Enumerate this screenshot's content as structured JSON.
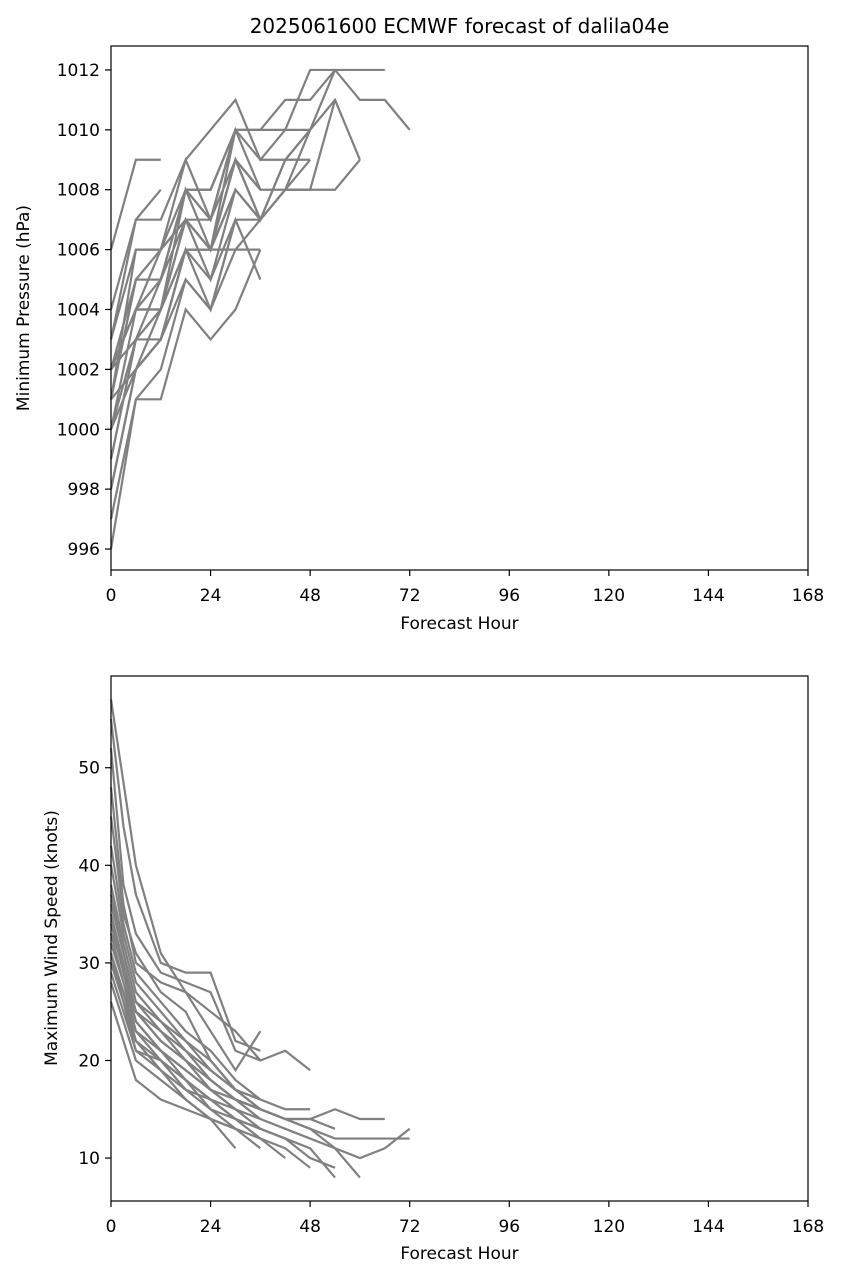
{
  "chart_data": [
    {
      "type": "line",
      "title": "2025061600 ECMWF forecast of dalila04e",
      "xlabel": "Forecast Hour",
      "ylabel": "Minimum Pressure (hPa)",
      "xlim": [
        0,
        168
      ],
      "ylim": [
        995.3,
        1012.8
      ],
      "xticks": [
        0,
        24,
        48,
        72,
        96,
        120,
        144,
        168
      ],
      "yticks": [
        996,
        998,
        1000,
        1002,
        1004,
        1006,
        1008,
        1010,
        1012
      ],
      "grid": false,
      "line_color": "#808080",
      "series": [
        {
          "x": [
            0,
            6,
            12
          ],
          "values": [
            1006,
            1009,
            1009
          ]
        },
        {
          "x": [
            0,
            6,
            12
          ],
          "values": [
            1003,
            1007,
            1008
          ]
        },
        {
          "x": [
            0,
            6,
            12,
            18,
            24,
            30,
            36,
            42,
            48,
            54,
            60,
            66,
            72
          ],
          "values": [
            1002,
            1005,
            1006,
            1009,
            1010,
            1011,
            1009,
            1010,
            1012,
            1012,
            1011,
            1011,
            1010
          ]
        },
        {
          "x": [
            0,
            6,
            12,
            18,
            24,
            30,
            36,
            42,
            48,
            54,
            60
          ],
          "values": [
            1004,
            1007,
            1007,
            1009,
            1007,
            1009,
            1007,
            1009,
            1010,
            1011,
            1009
          ]
        },
        {
          "x": [
            0,
            6,
            12,
            18,
            24,
            30,
            36,
            42,
            48,
            54,
            60,
            66
          ],
          "values": [
            1001,
            1006,
            1006,
            1008,
            1008,
            1010,
            1010,
            1011,
            1011,
            1012,
            1012,
            1012
          ]
        },
        {
          "x": [
            0,
            6,
            12,
            18,
            24,
            30,
            36,
            42,
            48
          ],
          "values": [
            1001,
            1005,
            1005,
            1008,
            1007,
            1010,
            1009,
            1009,
            1009
          ]
        },
        {
          "x": [
            0,
            6,
            12,
            18,
            24,
            30,
            36,
            42,
            48
          ],
          "values": [
            1002,
            1004,
            1006,
            1007,
            1006,
            1009,
            1008,
            1008,
            1009
          ]
        },
        {
          "x": [
            0,
            6,
            12,
            18,
            24,
            30,
            36,
            42,
            48
          ],
          "values": [
            1000,
            1004,
            1004,
            1007,
            1006,
            1008,
            1007,
            1008,
            1010
          ]
        },
        {
          "x": [
            0,
            6,
            12,
            18,
            24,
            30,
            36,
            42,
            48,
            54
          ],
          "values": [
            999,
            1003,
            1003,
            1006,
            1005,
            1008,
            1007,
            1009,
            1010,
            1012
          ]
        },
        {
          "x": [
            0,
            6,
            12,
            18,
            24,
            30,
            36,
            42,
            48,
            54
          ],
          "values": [
            998,
            1002,
            1003,
            1006,
            1004,
            1007,
            1007,
            1008,
            1008,
            1011
          ]
        },
        {
          "x": [
            0,
            6,
            12,
            18,
            24,
            30,
            36,
            42,
            48,
            54,
            60
          ],
          "values": [
            997,
            1001,
            1002,
            1005,
            1004,
            1006,
            1007,
            1008,
            1008,
            1008,
            1009
          ]
        },
        {
          "x": [
            0,
            6,
            12,
            18,
            24,
            30,
            36
          ],
          "values": [
            996,
            1001,
            1001,
            1004,
            1003,
            1004,
            1006
          ]
        },
        {
          "x": [
            0,
            6,
            12,
            18,
            24,
            30,
            36
          ],
          "values": [
            1002,
            1003,
            1004,
            1007,
            1006,
            1009,
            1008
          ]
        },
        {
          "x": [
            0,
            6,
            12,
            18,
            24,
            30,
            36
          ],
          "values": [
            1001,
            1002,
            1004,
            1008,
            1006,
            1009,
            1007
          ]
        },
        {
          "x": [
            0,
            6,
            12,
            18,
            24,
            30,
            36
          ],
          "values": [
            1000,
            1003,
            1005,
            1008,
            1007,
            1010,
            1008
          ]
        },
        {
          "x": [
            0,
            6,
            12,
            18,
            24,
            30,
            36
          ],
          "values": [
            1002,
            1004,
            1005,
            1007,
            1005,
            1007,
            1005
          ]
        },
        {
          "x": [
            0,
            6,
            12,
            18,
            24,
            30,
            36
          ],
          "values": [
            1000,
            1002,
            1003,
            1006,
            1006,
            1006,
            1006
          ]
        },
        {
          "x": [
            0,
            6,
            12,
            18,
            24,
            30,
            36,
            42,
            48
          ],
          "values": [
            999,
            1003,
            1004,
            1006,
            1006,
            1010,
            1010,
            1010,
            1010
          ]
        },
        {
          "x": [
            0,
            6,
            12,
            18,
            24,
            30
          ],
          "values": [
            1001,
            1005,
            1005,
            1008,
            1008,
            1010
          ]
        },
        {
          "x": [
            0,
            6,
            12,
            18,
            24,
            30
          ],
          "values": [
            1003,
            1006,
            1006,
            1007,
            1007,
            1010
          ]
        },
        {
          "x": [
            0,
            6,
            12,
            18,
            24,
            30
          ],
          "values": [
            998,
            1002,
            1003,
            1005,
            1004,
            1007
          ]
        },
        {
          "x": [
            0,
            6,
            12,
            18,
            24,
            30
          ],
          "values": [
            1002,
            1004,
            1004,
            1006,
            1006,
            1008
          ]
        }
      ]
    },
    {
      "type": "line",
      "title": "",
      "xlabel": "Forecast Hour",
      "ylabel": "Maximum Wind Speed (knots)",
      "xlim": [
        0,
        168
      ],
      "ylim": [
        5.6,
        59.4
      ],
      "xticks": [
        0,
        24,
        48,
        72,
        96,
        120,
        144,
        168
      ],
      "yticks": [
        10,
        20,
        30,
        40,
        50
      ],
      "grid": false,
      "line_color": "#808080",
      "series": [
        {
          "x": [
            0,
            6,
            12,
            18,
            24,
            30,
            36,
            42,
            48
          ],
          "values": [
            57,
            40,
            31,
            27,
            25,
            23,
            20,
            21,
            19
          ]
        },
        {
          "x": [
            0,
            3,
            6,
            12,
            18,
            24,
            30,
            36
          ],
          "values": [
            55,
            44,
            37,
            30,
            29,
            29,
            22,
            21
          ]
        },
        {
          "x": [
            0,
            3,
            6,
            12,
            18,
            24,
            30,
            36
          ],
          "values": [
            52,
            38,
            33,
            29,
            28,
            27,
            21,
            20
          ]
        },
        {
          "x": [
            0,
            3,
            6,
            12,
            18,
            24,
            30,
            36
          ],
          "values": [
            48,
            36,
            30,
            28,
            27,
            23,
            19,
            23
          ]
        },
        {
          "x": [
            0,
            3,
            6,
            12,
            18,
            24,
            30,
            36
          ],
          "values": [
            45,
            35,
            31,
            27,
            25,
            20,
            17,
            16
          ]
        },
        {
          "x": [
            0,
            3,
            6,
            12,
            18,
            24,
            30,
            36,
            42,
            48
          ],
          "values": [
            42,
            34,
            29,
            26,
            23,
            21,
            18,
            16,
            15,
            15
          ]
        },
        {
          "x": [
            0,
            3,
            6,
            12,
            18,
            24,
            30,
            36,
            42,
            48,
            54,
            60,
            66
          ],
          "values": [
            40,
            33,
            28,
            25,
            22,
            20,
            17,
            15,
            14,
            14,
            15,
            14,
            14
          ]
        },
        {
          "x": [
            0,
            3,
            6,
            12,
            18,
            24,
            30,
            36,
            42,
            48,
            54,
            60,
            66,
            72
          ],
          "values": [
            38,
            32,
            27,
            24,
            21,
            18,
            16,
            15,
            14,
            13,
            12,
            12,
            12,
            12
          ]
        },
        {
          "x": [
            0,
            3,
            6,
            12,
            18,
            24,
            30,
            36,
            42,
            48,
            54,
            60,
            66,
            72
          ],
          "values": [
            36,
            31,
            26,
            23,
            20,
            18,
            16,
            15,
            14,
            13,
            11,
            10,
            11,
            13
          ]
        },
        {
          "x": [
            0,
            3,
            6,
            12,
            18,
            24,
            30,
            36,
            42,
            48,
            54,
            60
          ],
          "values": [
            35,
            30,
            25,
            22,
            20,
            17,
            15,
            14,
            13,
            12,
            11,
            8
          ]
        },
        {
          "x": [
            0,
            3,
            6,
            12,
            18,
            24,
            30,
            36,
            42,
            48,
            54
          ],
          "values": [
            34,
            29,
            24,
            21,
            19,
            17,
            15,
            13,
            12,
            11,
            8
          ]
        },
        {
          "x": [
            0,
            3,
            6,
            12,
            18,
            24,
            30,
            36,
            42,
            48,
            54
          ],
          "values": [
            33,
            28,
            24,
            21,
            18,
            16,
            14,
            13,
            12,
            10,
            9
          ]
        },
        {
          "x": [
            0,
            3,
            6,
            12,
            18,
            24,
            30,
            36,
            42,
            48
          ],
          "values": [
            32,
            28,
            23,
            20,
            18,
            16,
            14,
            12,
            11,
            9
          ]
        },
        {
          "x": [
            0,
            3,
            6,
            12,
            18,
            24,
            30,
            36,
            42
          ],
          "values": [
            31,
            27,
            22,
            20,
            17,
            15,
            13,
            12,
            10
          ]
        },
        {
          "x": [
            0,
            3,
            6,
            12,
            18,
            24,
            30,
            36
          ],
          "values": [
            30,
            26,
            22,
            19,
            16,
            14,
            13,
            11
          ]
        },
        {
          "x": [
            0,
            3,
            6,
            12,
            18,
            24,
            30
          ],
          "values": [
            28,
            24,
            20,
            18,
            16,
            14,
            11
          ]
        },
        {
          "x": [
            0,
            3,
            6,
            12,
            18,
            24,
            30
          ],
          "values": [
            26,
            22,
            18,
            16,
            15,
            14,
            13
          ]
        },
        {
          "x": [
            0,
            3,
            6,
            12,
            18,
            24,
            30,
            36
          ],
          "values": [
            33,
            30,
            25,
            23,
            21,
            19,
            17,
            15
          ]
        },
        {
          "x": [
            0,
            3,
            6,
            12,
            18,
            24,
            30,
            36
          ],
          "values": [
            37,
            31,
            26,
            24,
            22,
            19,
            17,
            16
          ]
        },
        {
          "x": [
            0,
            3,
            6,
            12,
            18,
            24,
            30,
            36
          ],
          "values": [
            30,
            27,
            23,
            21,
            19,
            17,
            16,
            14
          ]
        },
        {
          "x": [
            0,
            3,
            6,
            12,
            18,
            24,
            30,
            36
          ],
          "values": [
            29,
            25,
            21,
            20,
            18,
            15,
            14,
            13
          ]
        },
        {
          "x": [
            0,
            3,
            6,
            12,
            18,
            24,
            30
          ],
          "values": [
            31,
            26,
            21,
            19,
            17,
            16,
            15
          ]
        },
        {
          "x": [
            0,
            3,
            6,
            12,
            18,
            24,
            30,
            36,
            42,
            48,
            54
          ],
          "values": [
            35,
            29,
            25,
            22,
            20,
            18,
            16,
            15,
            14,
            14,
            13
          ]
        }
      ]
    }
  ]
}
